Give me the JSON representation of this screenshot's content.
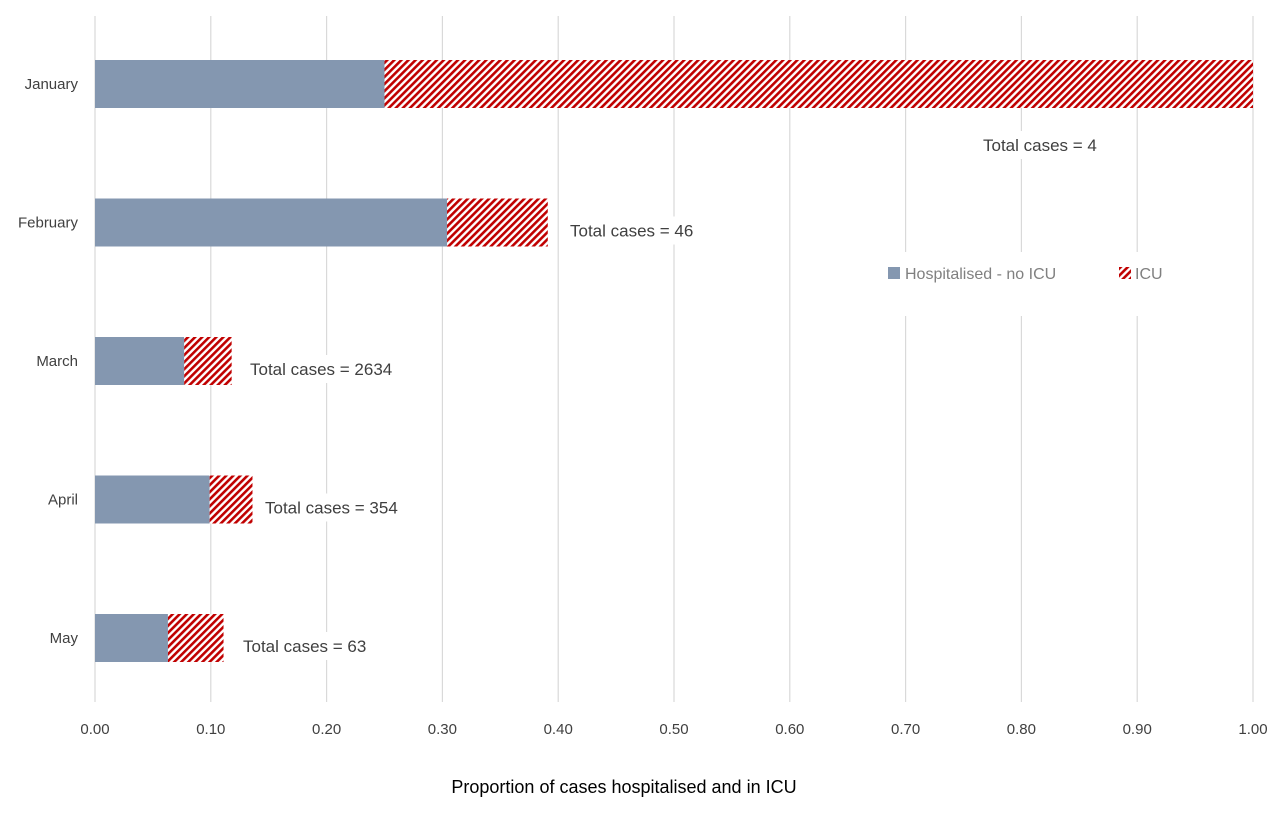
{
  "chart_data": {
    "type": "bar",
    "orientation": "horizontal",
    "stacked": true,
    "categories": [
      "January",
      "February",
      "March",
      "April",
      "May"
    ],
    "series": [
      {
        "name": "Hospitalised - no ICU",
        "values": [
          0.25,
          0.304,
          0.077,
          0.099,
          0.063
        ],
        "color": "#8497b0",
        "pattern": "solid"
      },
      {
        "name": "ICU",
        "values": [
          0.75,
          0.087,
          0.041,
          0.037,
          0.048
        ],
        "color": "#c00000",
        "pattern": "diagonal-hatch"
      }
    ],
    "annotations": [
      "Total cases = 4",
      "Total cases = 46",
      "Total cases = 2634",
      "Total cases = 354",
      "Total cases = 63"
    ],
    "xlim": [
      0,
      1
    ],
    "xticks": [
      "0.00",
      "0.10",
      "0.20",
      "0.30",
      "0.40",
      "0.50",
      "0.60",
      "0.70",
      "0.80",
      "0.90",
      "1.00"
    ],
    "xlabel": "Proportion of cases hospitalised and in ICU",
    "ylabel": "",
    "title": "",
    "grid": "vertical",
    "legend_position": "right"
  }
}
